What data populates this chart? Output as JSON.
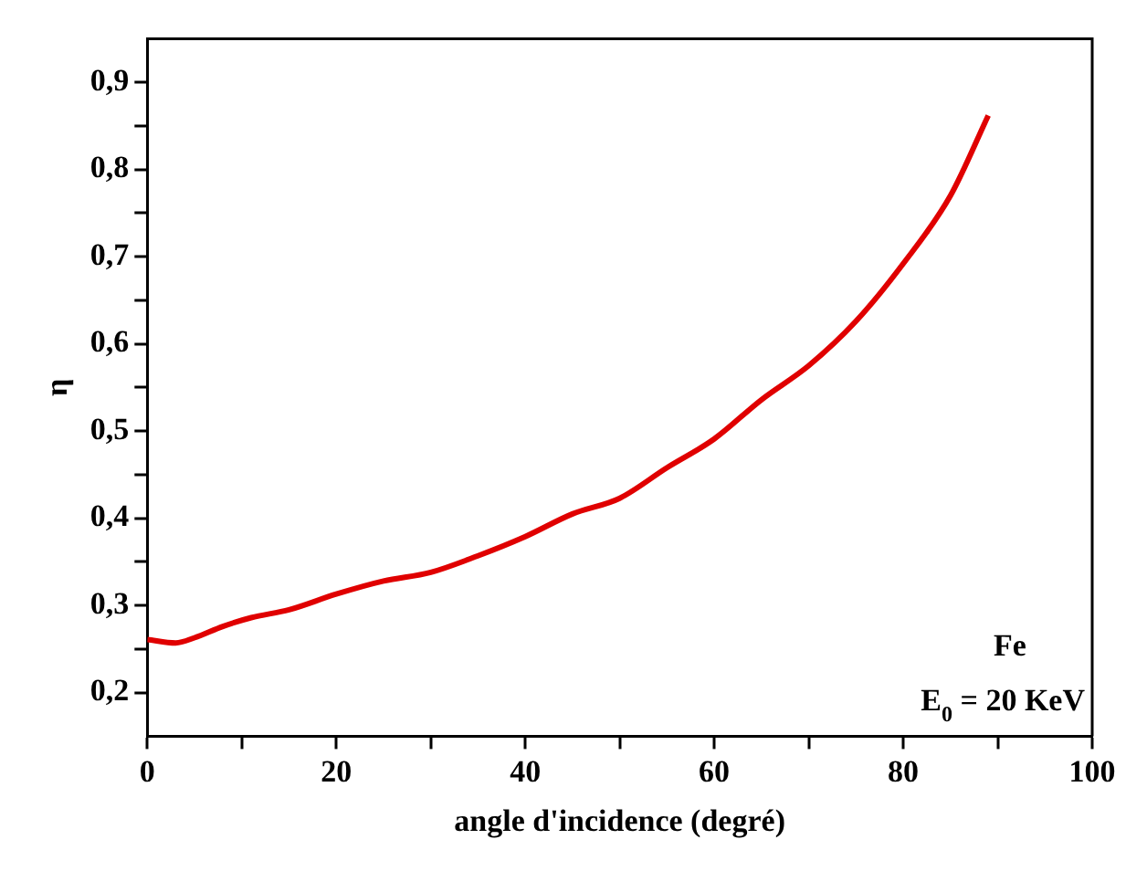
{
  "chart_data": {
    "type": "line",
    "xlabel": "angle d'incidence (degré)",
    "ylabel": "η",
    "annotations": [
      "Fe",
      "E$_{0}$ = 20 KeV"
    ],
    "x": [
      0,
      3,
      5,
      8,
      11,
      15,
      20,
      25,
      30,
      35,
      40,
      45,
      50,
      55,
      60,
      65,
      70,
      75,
      80,
      85,
      89
    ],
    "series": [
      {
        "color": "#e00000",
        "values": [
          0.261,
          0.257,
          0.263,
          0.276,
          0.286,
          0.295,
          0.313,
          0.328,
          0.338,
          0.357,
          0.379,
          0.405,
          0.423,
          0.458,
          0.491,
          0.536,
          0.575,
          0.626,
          0.692,
          0.77,
          0.862
        ]
      }
    ],
    "xlim": [
      0,
      100
    ],
    "xticks": [
      0,
      {
        "value": 10,
        "label": null
      },
      20,
      {
        "value": 30,
        "label": null
      },
      40,
      {
        "value": 50,
        "label": null
      },
      60,
      {
        "value": 70,
        "label": null
      },
      80,
      {
        "value": 90,
        "label": null
      },
      100
    ],
    "ylim": [
      0.15,
      0.95
    ],
    "yticks": [
      {
        "value": 0.2,
        "label": "0,2"
      },
      {
        "value": 0.25,
        "label": null
      },
      {
        "value": 0.3,
        "label": "0,3"
      },
      {
        "value": 0.35,
        "label": null
      },
      {
        "value": 0.4,
        "label": "0,4"
      },
      {
        "value": 0.45,
        "label": null
      },
      {
        "value": 0.5,
        "label": "0,5"
      },
      {
        "value": 0.55,
        "label": null
      },
      {
        "value": 0.6,
        "label": "0,6"
      },
      {
        "value": 0.65,
        "label": null
      },
      {
        "value": 0.7,
        "label": "0,7"
      },
      {
        "value": 0.75,
        "label": null
      },
      {
        "value": 0.8,
        "label": "0,8"
      },
      {
        "value": 0.85,
        "label": null
      },
      {
        "value": 0.9,
        "label": "0,9"
      }
    ],
    "grid": false,
    "legend": false,
    "marker": "none",
    "line_style": "solid"
  }
}
